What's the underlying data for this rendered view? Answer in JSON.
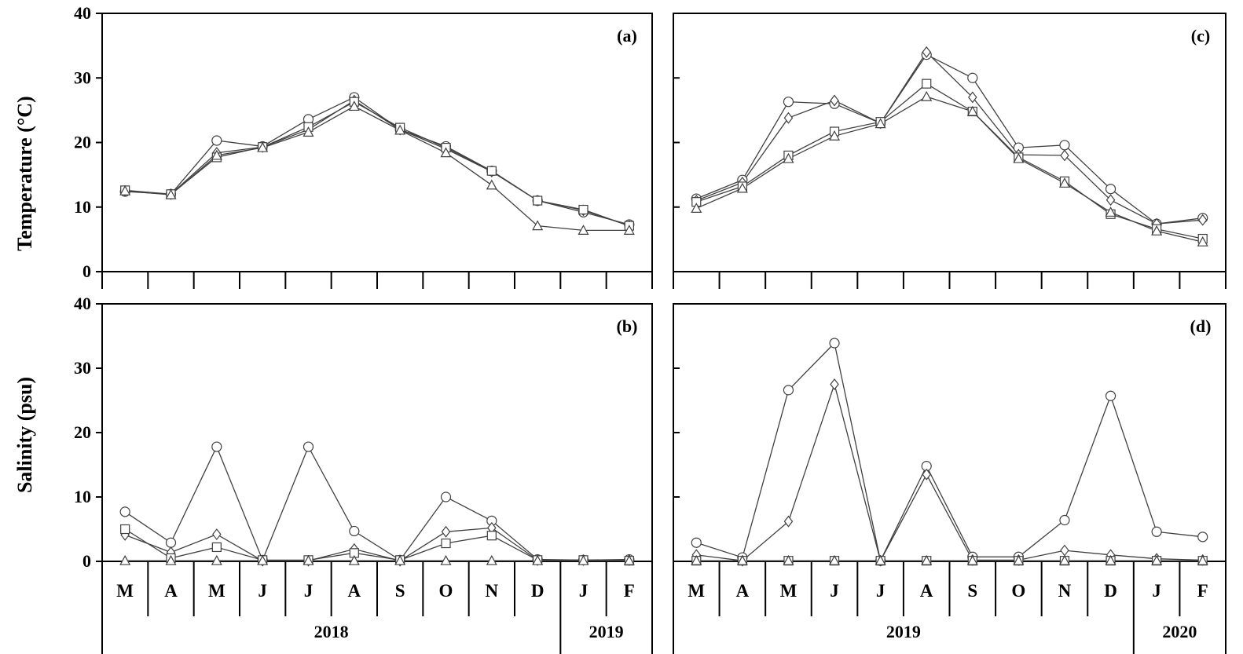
{
  "chart_data": [
    {
      "id": "a",
      "type": "line",
      "panel_label": "(a)",
      "ylabel": "Temperature (°C)",
      "ylim": [
        0,
        40
      ],
      "yticks": [
        "0",
        "10",
        "20",
        "30",
        "40"
      ],
      "categories": [
        "M",
        "A",
        "M",
        "J",
        "J",
        "A",
        "S",
        "O",
        "N",
        "D",
        "J",
        "F"
      ],
      "series": [
        {
          "name": "circle",
          "marker": "circle",
          "values": [
            12.4,
            12.0,
            20.3,
            19.4,
            23.6,
            27.0,
            22.0,
            19.4,
            15.6,
            11.0,
            9.2,
            7.3
          ]
        },
        {
          "name": "diamond",
          "marker": "diamond",
          "values": [
            12.5,
            12.0,
            18.4,
            19.3,
            22.0,
            26.5,
            22.0,
            19.0,
            15.5,
            11.0,
            9.5,
            7.1
          ]
        },
        {
          "name": "square",
          "marker": "square",
          "values": [
            12.6,
            12.0,
            17.7,
            19.3,
            22.4,
            26.3,
            22.3,
            19.2,
            15.6,
            11.0,
            9.6,
            7.1
          ]
        },
        {
          "name": "triangle",
          "marker": "triangle",
          "values": [
            12.5,
            11.9,
            18.0,
            19.2,
            21.6,
            25.6,
            21.9,
            18.4,
            13.4,
            7.1,
            6.4,
            6.4
          ]
        }
      ]
    },
    {
      "id": "c",
      "type": "line",
      "panel_label": "(c)",
      "ylabel": "",
      "ylim": [
        0,
        40
      ],
      "yticks": [],
      "categories": [
        "M",
        "A",
        "M",
        "J",
        "J",
        "A",
        "S",
        "O",
        "N",
        "D",
        "J",
        "F"
      ],
      "series": [
        {
          "name": "circle",
          "marker": "circle",
          "values": [
            11.3,
            14.2,
            26.3,
            26.0,
            23.0,
            33.6,
            30.0,
            19.2,
            19.6,
            12.8,
            7.4,
            8.3
          ]
        },
        {
          "name": "diamond",
          "marker": "diamond",
          "values": [
            11.0,
            13.8,
            23.8,
            26.5,
            23.0,
            34.0,
            27.0,
            18.1,
            18.0,
            11.1,
            7.4,
            8.0
          ]
        },
        {
          "name": "square",
          "marker": "square",
          "values": [
            10.8,
            13.2,
            18.0,
            21.7,
            23.2,
            29.1,
            24.8,
            17.7,
            14.0,
            8.9,
            6.6,
            5.1
          ]
        },
        {
          "name": "triangle",
          "marker": "triangle",
          "values": [
            9.8,
            12.9,
            17.5,
            21.0,
            22.9,
            27.1,
            24.8,
            17.5,
            13.7,
            9.2,
            6.3,
            4.6
          ]
        }
      ]
    },
    {
      "id": "b",
      "type": "line",
      "panel_label": "(b)",
      "ylabel": "Salinity (psu)",
      "ylim": [
        0,
        40
      ],
      "yticks": [
        "0",
        "10",
        "20",
        "30",
        "40"
      ],
      "categories": [
        "M",
        "A",
        "M",
        "J",
        "J",
        "A",
        "S",
        "O",
        "N",
        "D",
        "J",
        "F"
      ],
      "series": [
        {
          "name": "circle",
          "marker": "circle",
          "values": [
            7.7,
            2.9,
            17.8,
            0.2,
            17.8,
            4.7,
            0.2,
            10.0,
            6.3,
            0.3,
            0.2,
            0.3
          ]
        },
        {
          "name": "diamond",
          "marker": "diamond",
          "values": [
            4.1,
            1.4,
            4.2,
            0.1,
            0.1,
            1.9,
            0.1,
            4.6,
            5.2,
            0.2,
            0.2,
            0.2
          ]
        },
        {
          "name": "square",
          "marker": "square",
          "values": [
            5.0,
            0.5,
            2.2,
            0.2,
            0.2,
            1.3,
            0.2,
            2.8,
            4.0,
            0.2,
            0.2,
            0.1
          ]
        },
        {
          "name": "triangle",
          "marker": "triangle",
          "values": [
            0.1,
            0.1,
            0.1,
            0.1,
            0.1,
            0.1,
            0.1,
            0.1,
            0.1,
            0.1,
            0.1,
            0.1
          ]
        }
      ]
    },
    {
      "id": "d",
      "type": "line",
      "panel_label": "(d)",
      "ylabel": "",
      "ylim": [
        0,
        40
      ],
      "yticks": [],
      "categories": [
        "M",
        "A",
        "M",
        "J",
        "J",
        "A",
        "S",
        "O",
        "N",
        "D",
        "J",
        "F"
      ],
      "series": [
        {
          "name": "circle",
          "marker": "circle",
          "values": [
            2.9,
            0.6,
            26.6,
            33.9,
            0.1,
            14.8,
            0.7,
            0.7,
            6.4,
            25.7,
            4.6,
            3.8
          ]
        },
        {
          "name": "diamond",
          "marker": "diamond",
          "values": [
            1.0,
            0.1,
            6.2,
            27.5,
            0.1,
            13.5,
            0.2,
            0.2,
            1.7,
            1.0,
            0.4,
            0.2
          ]
        },
        {
          "name": "square",
          "marker": "square",
          "values": [
            0.1,
            0.1,
            0.1,
            0.1,
            0.1,
            0.1,
            0.1,
            0.1,
            0.1,
            0.1,
            0.1,
            0.1
          ]
        },
        {
          "name": "triangle",
          "marker": "triangle",
          "values": [
            0.1,
            0.1,
            0.1,
            0.1,
            0.1,
            0.1,
            0.1,
            0.1,
            0.1,
            0.1,
            0.1,
            0.1
          ]
        }
      ]
    }
  ],
  "x_axis": {
    "left": {
      "months": [
        "M",
        "A",
        "M",
        "J",
        "J",
        "A",
        "S",
        "O",
        "N",
        "D",
        "J",
        "F"
      ],
      "years": [
        "2018",
        "2019"
      ]
    },
    "right": {
      "months": [
        "M",
        "A",
        "M",
        "J",
        "J",
        "A",
        "S",
        "O",
        "N",
        "D",
        "J",
        "F"
      ],
      "years": [
        "2019",
        "2020"
      ]
    }
  },
  "colors": {
    "line": "#404040",
    "axis": "#000000",
    "background": "#ffffff"
  }
}
